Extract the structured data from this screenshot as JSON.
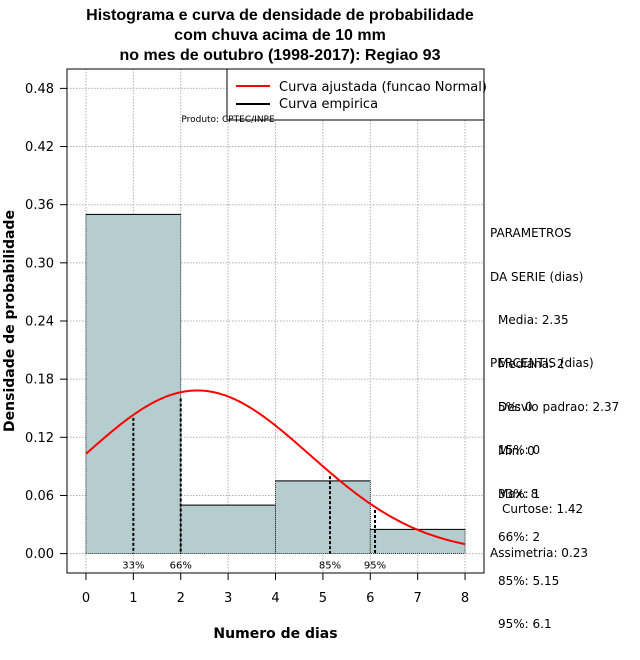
{
  "chart_data": {
    "type": "bar",
    "title_lines": [
      "Histograma e curva de densidade de probabilidade",
      "com chuva acima de 10 mm",
      "no mes de outubro (1998-2017): Regiao 93"
    ],
    "xlabel": "Numero de dias",
    "ylabel": "Densidade de probabilidade",
    "xlim": [
      -0.4,
      8.4
    ],
    "ylim": [
      -0.02,
      0.5
    ],
    "x_ticks": [
      0,
      1,
      2,
      3,
      4,
      5,
      6,
      7,
      8
    ],
    "x_tick_labels": [
      "0",
      "1",
      "2",
      "3",
      "4",
      "5",
      "6",
      "7",
      "8"
    ],
    "y_ticks": [
      0.0,
      0.06,
      0.12,
      0.18,
      0.24,
      0.3,
      0.36,
      0.42,
      0.48
    ],
    "y_tick_labels": [
      "0.00",
      "0.06",
      "0.12",
      "0.18",
      "0.24",
      "0.30",
      "0.36",
      "0.42",
      "0.48"
    ],
    "grid": true,
    "bins": [
      {
        "x0": 0,
        "x1": 2,
        "density": 0.35
      },
      {
        "x0": 2,
        "x1": 4,
        "density": 0.05
      },
      {
        "x0": 4,
        "x1": 6,
        "density": 0.075
      },
      {
        "x0": 6,
        "x1": 8,
        "density": 0.025
      }
    ],
    "bar_color": "#b5cdce",
    "normal_curve": {
      "name": "Curva ajustada (funcao Normal)",
      "mean": 2.35,
      "sd": 2.37,
      "color": "#ff0000"
    },
    "empirical_curve": {
      "name": "Curva empirica",
      "color": "#000000"
    },
    "percentile_markers": [
      {
        "x": 1,
        "label": "33%",
        "y_top": 0.14
      },
      {
        "x": 2,
        "label": "66%",
        "y_top": 0.16
      },
      {
        "x": 5.15,
        "label": "85%",
        "y_top": 0.08
      },
      {
        "x": 6.1,
        "label": "95%",
        "y_top": 0.045
      }
    ],
    "legend_position": "top-right",
    "product_note": "Produto: CPTEC/INPE"
  },
  "stats": {
    "parametros_title": [
      "PARAMETROS",
      "DA SERIE (dias)"
    ],
    "parametros": [
      "Media: 2.35",
      "Mediana: 2",
      "Desvio padrao: 2.37",
      "Min: 0",
      "Max: 8"
    ],
    "percentis_title": "PERCENTIS (dias)",
    "percentis": [
      "5%: 0",
      "15%: 0",
      "33%: 1",
      "66%: 2",
      "85%: 5.15",
      "95%: 6.1"
    ],
    "curtose": "Curtose: 1.42",
    "assimetria": "Assimetria: 0.23"
  }
}
